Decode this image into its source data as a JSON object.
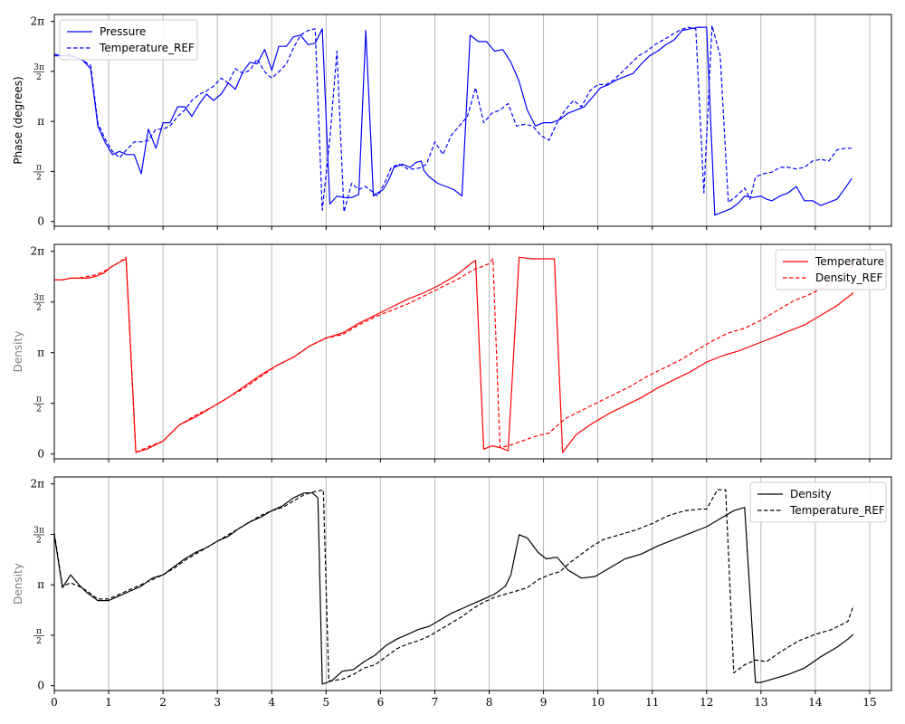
{
  "chart_data": [
    {
      "type": "line",
      "ylabel": "Phase (degrees)",
      "ylabel_color": "#000000",
      "legend_position": "top-left",
      "grid": "x",
      "xlim": [
        0,
        15.4
      ],
      "ylim": [
        -0.15,
        6.5
      ],
      "ytick_labels": [
        "0",
        "π/2",
        "π",
        "3π/2",
        "2π"
      ],
      "series": [
        {
          "name": "Pressure",
          "color": "#0000ff",
          "dash": "solid",
          "x": [
            0,
            0.13,
            0.27,
            0.4,
            0.53,
            0.67,
            0.8,
            0.93,
            1.07,
            1.2,
            1.33,
            1.47,
            1.6,
            1.73,
            1.87,
            2.0,
            2.13,
            2.27,
            2.4,
            2.53,
            2.67,
            2.8,
            2.93,
            3.07,
            3.2,
            3.33,
            3.47,
            3.6,
            3.73,
            3.87,
            4.0,
            4.13,
            4.27,
            4.4,
            4.53,
            4.67,
            4.8,
            4.93,
            5.07,
            5.2,
            5.33,
            5.47,
            5.6,
            5.73,
            5.87,
            5.95,
            6.05,
            6.15,
            6.25,
            6.4,
            6.55,
            6.65,
            6.75,
            6.8,
            6.9,
            7.05,
            7.2,
            7.35,
            7.5,
            7.65,
            7.8,
            7.95,
            8.1,
            8.25,
            8.4,
            8.55,
            8.7,
            8.85,
            9.0,
            9.15,
            9.3,
            9.45,
            9.6,
            9.75,
            9.9,
            10.05,
            10.2,
            10.35,
            10.5,
            10.65,
            10.8,
            10.95,
            11.1,
            11.25,
            11.4,
            11.55,
            11.7,
            11.85,
            12.0,
            12.15,
            12.3,
            12.45,
            12.6,
            12.7,
            12.85,
            13.0,
            13.1,
            13.2,
            13.35,
            13.5,
            13.65,
            13.8,
            13.95,
            14.1,
            14.25,
            14.4,
            14.55,
            14.67
          ],
          "y": [
            5.25,
            5.2,
            5.2,
            5.15,
            5.05,
            4.8,
            3.0,
            2.5,
            2.1,
            2.2,
            2.1,
            2.1,
            1.5,
            2.9,
            2.3,
            3.1,
            3.1,
            3.6,
            3.6,
            3.3,
            3.7,
            4.0,
            3.8,
            4.0,
            4.35,
            4.15,
            4.7,
            5.0,
            4.95,
            5.4,
            4.75,
            5.5,
            5.5,
            5.8,
            5.85,
            5.55,
            5.6,
            6.05,
            0.55,
            0.8,
            0.75,
            0.75,
            0.85,
            6.0,
            0.8,
            0.9,
            1.0,
            1.3,
            1.7,
            1.8,
            1.7,
            1.85,
            1.9,
            1.6,
            1.4,
            1.2,
            1.1,
            1.0,
            0.8,
            5.85,
            5.65,
            5.65,
            5.35,
            5.4,
            5.0,
            4.4,
            3.5,
            3.0,
            3.1,
            3.1,
            3.2,
            3.4,
            3.5,
            3.6,
            3.9,
            4.2,
            4.3,
            4.45,
            4.55,
            4.65,
            4.95,
            5.2,
            5.35,
            5.55,
            5.7,
            6.0,
            6.05,
            6.1,
            6.1,
            0.2,
            0.3,
            0.4,
            0.6,
            0.8,
            0.75,
            0.8,
            0.7,
            0.65,
            0.8,
            0.9,
            1.1,
            0.65,
            0.65,
            0.5,
            0.6,
            0.7,
            1.05,
            1.35
          ]
        },
        {
          "name": "Temperature_REF",
          "color": "#0000ff",
          "dash": "dashed",
          "x": [
            0,
            0.13,
            0.27,
            0.4,
            0.53,
            0.67,
            0.8,
            0.93,
            1.07,
            1.2,
            1.33,
            1.47,
            1.6,
            1.73,
            1.87,
            2.0,
            2.13,
            2.27,
            2.4,
            2.53,
            2.67,
            2.8,
            2.93,
            3.07,
            3.2,
            3.33,
            3.47,
            3.6,
            3.73,
            3.87,
            4.0,
            4.13,
            4.27,
            4.4,
            4.53,
            4.67,
            4.8,
            4.93,
            5.07,
            5.2,
            5.33,
            5.47,
            5.6,
            5.72,
            5.8,
            5.95,
            6.1,
            6.2,
            6.35,
            6.5,
            6.65,
            6.75,
            6.85,
            7.0,
            7.15,
            7.3,
            7.45,
            7.6,
            7.75,
            7.9,
            8.05,
            8.2,
            8.35,
            8.5,
            8.65,
            8.8,
            8.95,
            9.1,
            9.25,
            9.4,
            9.55,
            9.7,
            9.85,
            10.0,
            10.15,
            10.3,
            10.45,
            10.6,
            10.75,
            10.9,
            11.05,
            11.2,
            11.35,
            11.5,
            11.65,
            11.8,
            11.95,
            12.1,
            12.25,
            12.4,
            12.55,
            12.7,
            12.8,
            12.9,
            13.05,
            13.2,
            13.35,
            13.5,
            13.65,
            13.8,
            13.95,
            14.1,
            14.25,
            14.4,
            14.55,
            14.67
          ],
          "y": [
            5.2,
            5.2,
            5.25,
            5.15,
            5.05,
            4.9,
            3.1,
            2.6,
            2.2,
            2.0,
            2.25,
            2.5,
            2.5,
            2.55,
            2.9,
            2.9,
            3.0,
            3.3,
            3.5,
            3.8,
            4.0,
            4.1,
            4.25,
            4.5,
            4.35,
            4.8,
            4.65,
            4.75,
            5.1,
            4.7,
            4.5,
            4.7,
            4.95,
            5.45,
            5.85,
            6.0,
            6.05,
            0.35,
            2.6,
            5.35,
            0.3,
            1.2,
            1.0,
            1.1,
            1.0,
            0.8,
            1.3,
            1.7,
            1.8,
            1.65,
            1.65,
            1.7,
            1.8,
            2.5,
            2.1,
            2.7,
            3.0,
            3.3,
            4.2,
            3.1,
            3.4,
            3.5,
            3.7,
            3.0,
            3.05,
            3.0,
            2.7,
            2.55,
            3.1,
            3.5,
            3.8,
            3.6,
            4.1,
            4.3,
            4.3,
            4.45,
            4.7,
            4.95,
            5.2,
            5.35,
            5.55,
            5.7,
            5.85,
            6.0,
            6.1,
            6.05,
            0.9,
            6.15,
            5.2,
            0.6,
            0.8,
            1.05,
            0.7,
            1.4,
            1.5,
            1.55,
            1.7,
            1.7,
            1.65,
            1.7,
            1.9,
            1.95,
            1.9,
            2.25,
            2.3,
            2.3
          ]
        }
      ]
    },
    {
      "type": "line",
      "ylabel": "Density",
      "ylabel_color": "#808080",
      "legend_position": "top-right",
      "grid": "x",
      "xlim": [
        0,
        15.4
      ],
      "ylim": [
        -0.15,
        6.5
      ],
      "ytick_labels": [
        "0",
        "π/2",
        "π",
        "3π/2",
        "2π"
      ],
      "series": [
        {
          "name": "Temperature",
          "color": "#ff0000",
          "dash": "solid",
          "x": [
            0,
            0.15,
            0.3,
            0.45,
            0.6,
            0.75,
            0.9,
            1.05,
            1.2,
            1.32,
            1.5,
            1.7,
            2.0,
            2.3,
            2.6,
            2.9,
            3.2,
            3.5,
            3.8,
            4.1,
            4.4,
            4.7,
            5.0,
            5.3,
            5.6,
            5.9,
            6.2,
            6.5,
            6.8,
            7.1,
            7.4,
            7.7,
            7.75,
            7.9,
            8.05,
            8.2,
            8.35,
            8.55,
            8.8,
            9.0,
            9.2,
            9.35,
            9.6,
            9.9,
            10.2,
            10.5,
            10.8,
            11.1,
            11.4,
            11.7,
            12.0,
            12.3,
            12.6,
            12.9,
            13.2,
            13.5,
            13.8,
            14.1,
            14.4,
            14.7
          ],
          "y": [
            5.4,
            5.4,
            5.45,
            5.45,
            5.45,
            5.5,
            5.6,
            5.8,
            5.95,
            6.05,
            0.05,
            0.15,
            0.4,
            0.9,
            1.15,
            1.45,
            1.75,
            2.1,
            2.45,
            2.75,
            3.0,
            3.35,
            3.6,
            3.75,
            4.05,
            4.3,
            4.55,
            4.8,
            5.0,
            5.25,
            5.55,
            5.95,
            6.0,
            0.15,
            0.25,
            0.2,
            0.1,
            6.1,
            6.05,
            6.05,
            6.05,
            0.05,
            0.6,
            0.95,
            1.25,
            1.5,
            1.75,
            2.05,
            2.3,
            2.55,
            2.85,
            3.05,
            3.2,
            3.4,
            3.6,
            3.8,
            4.0,
            4.3,
            4.6,
            5.0
          ]
        },
        {
          "name": "Density_REF",
          "color": "#ff0000",
          "dash": "dashed",
          "x": [
            0,
            0.15,
            0.3,
            0.45,
            0.6,
            0.75,
            0.9,
            1.05,
            1.2,
            1.32,
            1.5,
            1.7,
            2.0,
            2.3,
            2.6,
            2.9,
            3.2,
            3.5,
            3.8,
            4.1,
            4.4,
            4.7,
            5.0,
            5.3,
            5.6,
            5.9,
            6.2,
            6.5,
            6.8,
            7.1,
            7.4,
            7.7,
            8.0,
            8.07,
            8.2,
            8.35,
            8.6,
            8.85,
            9.1,
            9.4,
            9.7,
            10.0,
            10.3,
            10.6,
            10.9,
            11.2,
            11.5,
            11.8,
            12.1,
            12.4,
            12.7,
            13.0,
            13.3,
            13.6,
            13.9,
            14.2,
            14.5,
            14.7
          ],
          "y": [
            5.4,
            5.4,
            5.45,
            5.45,
            5.5,
            5.55,
            5.65,
            5.8,
            5.95,
            6.1,
            0.05,
            0.2,
            0.4,
            0.9,
            1.2,
            1.45,
            1.75,
            2.05,
            2.4,
            2.75,
            3.0,
            3.35,
            3.6,
            3.7,
            4.0,
            4.25,
            4.45,
            4.65,
            4.9,
            5.15,
            5.4,
            5.7,
            5.9,
            6.05,
            0.2,
            0.25,
            0.4,
            0.55,
            0.65,
            1.1,
            1.35,
            1.6,
            1.85,
            2.1,
            2.4,
            2.65,
            2.9,
            3.2,
            3.5,
            3.75,
            3.9,
            4.15,
            4.45,
            4.75,
            4.95,
            5.2,
            5.55,
            5.85
          ]
        }
      ]
    },
    {
      "type": "line",
      "ylabel": "Density",
      "ylabel_color": "#808080",
      "legend_position": "top-right",
      "grid": "x",
      "xlim": [
        0,
        15.4
      ],
      "ylim": [
        -0.15,
        6.5
      ],
      "xticks": [
        0,
        1,
        2,
        3,
        4,
        5,
        6,
        7,
        8,
        9,
        10,
        11,
        12,
        13,
        14,
        15
      ],
      "ytick_labels": [
        "0",
        "π/2",
        "π",
        "3π/2",
        "2π"
      ],
      "series": [
        {
          "name": "Density",
          "color": "#000000",
          "dash": "solid",
          "x": [
            0,
            0.15,
            0.3,
            0.45,
            0.6,
            0.8,
            1.0,
            1.2,
            1.4,
            1.6,
            1.8,
            2.0,
            2.2,
            2.4,
            2.6,
            2.8,
            3.0,
            3.2,
            3.4,
            3.6,
            3.8,
            4.0,
            4.2,
            4.4,
            4.6,
            4.75,
            4.85,
            4.93,
            5.1,
            5.3,
            5.5,
            5.7,
            5.9,
            6.1,
            6.3,
            6.5,
            6.7,
            6.9,
            7.1,
            7.3,
            7.5,
            7.7,
            7.9,
            8.1,
            8.3,
            8.4,
            8.55,
            8.7,
            8.9,
            9.05,
            9.25,
            9.45,
            9.7,
            9.95,
            10.2,
            10.5,
            10.8,
            11.1,
            11.4,
            11.7,
            12.0,
            12.2,
            12.4,
            12.5,
            12.7,
            12.9,
            13.0,
            13.2,
            13.5,
            13.8,
            14.1,
            14.4,
            14.6,
            14.7
          ],
          "y": [
            4.7,
            3.05,
            3.45,
            3.15,
            2.9,
            2.65,
            2.65,
            2.8,
            2.95,
            3.1,
            3.35,
            3.45,
            3.7,
            3.95,
            4.15,
            4.3,
            4.5,
            4.65,
            4.9,
            5.1,
            5.25,
            5.45,
            5.6,
            5.85,
            6.0,
            6.0,
            5.85,
            0.05,
            0.15,
            0.45,
            0.5,
            0.75,
            0.95,
            1.25,
            1.45,
            1.6,
            1.75,
            1.85,
            2.05,
            2.25,
            2.4,
            2.55,
            2.7,
            2.85,
            3.1,
            3.45,
            4.7,
            4.6,
            4.15,
            3.95,
            4.0,
            3.6,
            3.35,
            3.4,
            3.65,
            3.95,
            4.1,
            4.35,
            4.55,
            4.75,
            4.95,
            5.15,
            5.35,
            5.45,
            5.55,
            0.1,
            0.1,
            0.2,
            0.35,
            0.55,
            0.9,
            1.2,
            1.45,
            1.6
          ]
        },
        {
          "name": "Temperature_REF",
          "color": "#000000",
          "dash": "dashed",
          "x": [
            0,
            0.15,
            0.3,
            0.45,
            0.6,
            0.8,
            1.0,
            1.2,
            1.4,
            1.6,
            1.8,
            2.0,
            2.2,
            2.4,
            2.6,
            2.8,
            3.0,
            3.2,
            3.4,
            3.6,
            3.8,
            4.0,
            4.2,
            4.4,
            4.6,
            4.8,
            4.95,
            5.05,
            5.3,
            5.5,
            5.7,
            5.9,
            6.1,
            6.3,
            6.5,
            6.7,
            6.9,
            7.1,
            7.3,
            7.5,
            7.7,
            7.9,
            8.1,
            8.3,
            8.5,
            8.7,
            8.9,
            9.1,
            9.3,
            9.5,
            9.7,
            9.9,
            10.1,
            10.4,
            10.7,
            11.0,
            11.3,
            11.6,
            11.9,
            12.0,
            12.2,
            12.35,
            12.5,
            12.7,
            12.9,
            13.1,
            13.4,
            13.7,
            14.0,
            14.3,
            14.6,
            14.7
          ],
          "y": [
            4.75,
            3.1,
            3.2,
            3.1,
            2.95,
            2.7,
            2.7,
            2.85,
            3.0,
            3.15,
            3.3,
            3.45,
            3.65,
            3.9,
            4.1,
            4.3,
            4.5,
            4.7,
            4.9,
            5.1,
            5.3,
            5.45,
            5.55,
            5.75,
            5.95,
            6.05,
            6.1,
            0.15,
            0.2,
            0.35,
            0.55,
            0.65,
            0.9,
            1.15,
            1.3,
            1.4,
            1.55,
            1.75,
            1.95,
            2.15,
            2.4,
            2.6,
            2.75,
            2.85,
            2.95,
            3.05,
            3.3,
            3.45,
            3.55,
            3.85,
            4.1,
            4.35,
            4.55,
            4.7,
            4.85,
            5.05,
            5.3,
            5.45,
            5.5,
            5.5,
            6.1,
            6.1,
            0.4,
            0.65,
            0.8,
            0.75,
            1.1,
            1.4,
            1.6,
            1.75,
            2.0,
            2.5
          ]
        }
      ]
    }
  ]
}
